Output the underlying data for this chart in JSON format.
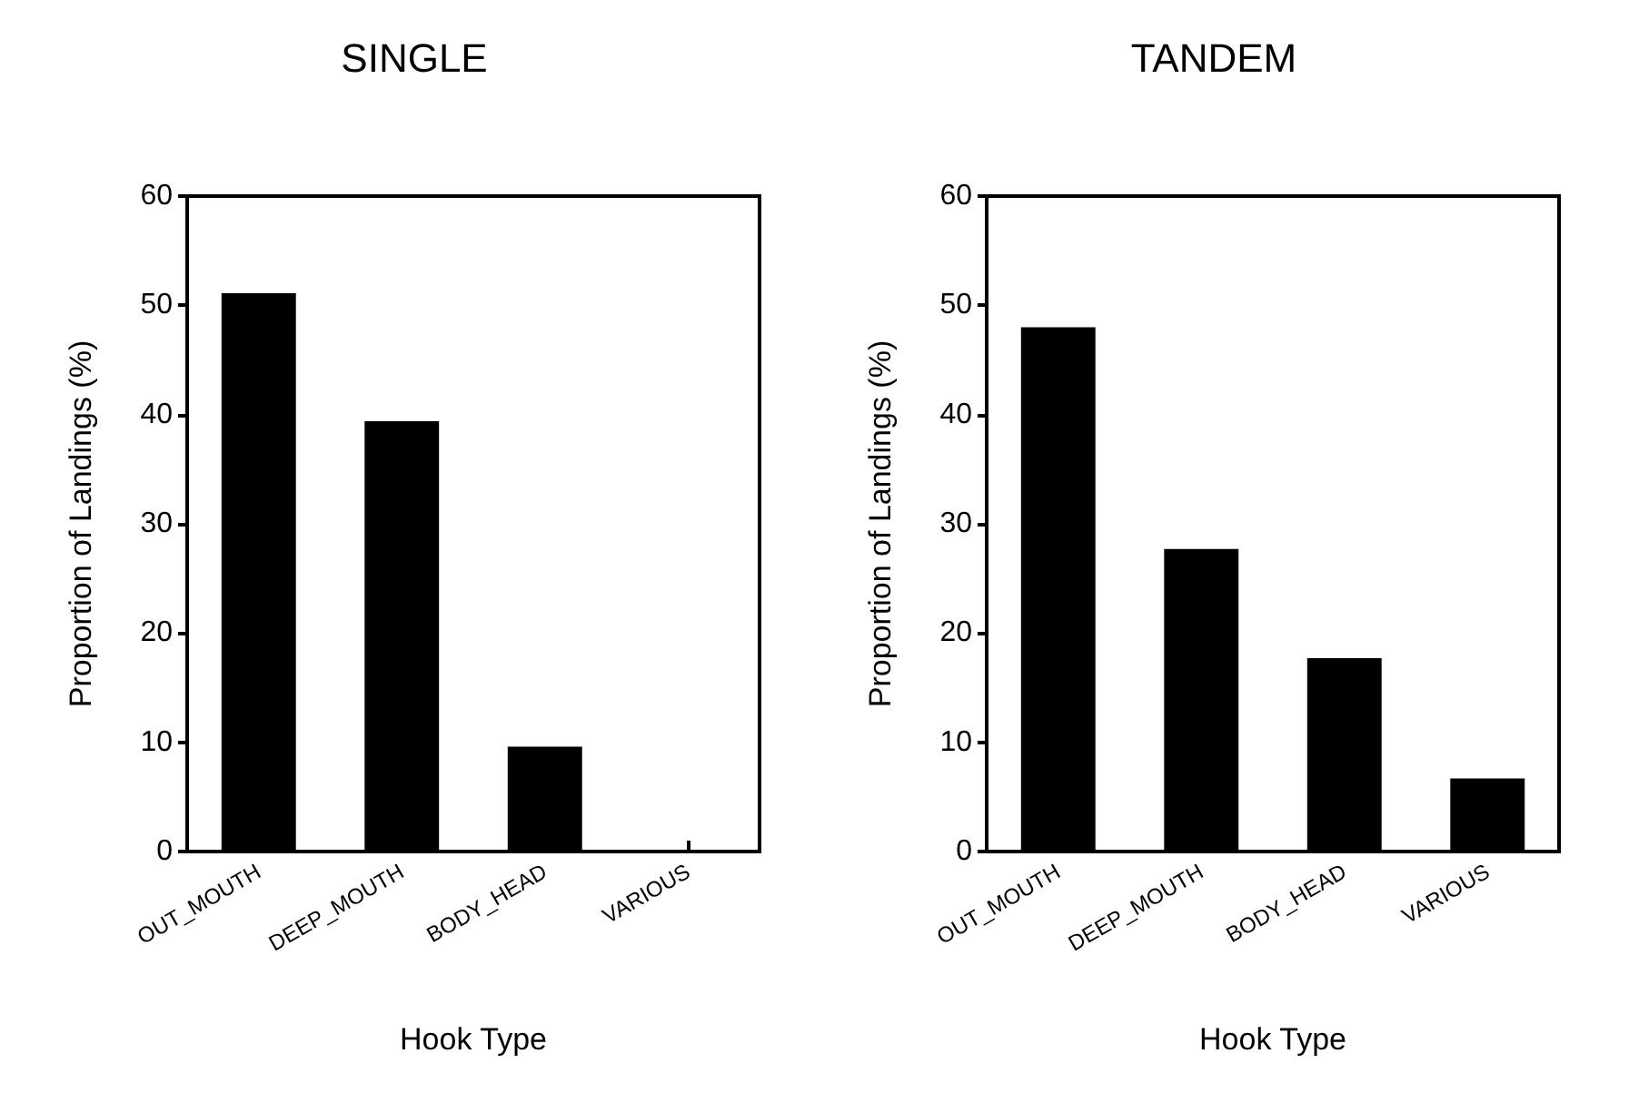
{
  "chart_data": [
    {
      "type": "bar",
      "title": "SINGLE",
      "xlabel": "Hook Type",
      "ylabel": "Proportion of Landings (%)",
      "categories": [
        "OUT_MOUTH",
        "DEEP_MOUTH",
        "BODY_HEAD",
        "VARIOUS"
      ],
      "values": [
        51.1,
        39.4,
        9.6,
        0
      ],
      "color": "#000000",
      "ylim": [
        0,
        60
      ],
      "yticks": [
        0,
        10,
        20,
        30,
        40,
        50,
        60
      ],
      "grid": false
    },
    {
      "type": "bar",
      "title": "TANDEM",
      "xlabel": "Hook Type",
      "ylabel": "Proportion of Landings (%)",
      "categories": [
        "OUT_MOUTH",
        "DEEP_MOUTH",
        "BODY_HEAD",
        "VARIOUS"
      ],
      "values": [
        48.0,
        27.7,
        17.7,
        6.7
      ],
      "color": "#000000",
      "ylim": [
        0,
        60
      ],
      "yticks": [
        0,
        10,
        20,
        30,
        40,
        50,
        60
      ],
      "grid": false
    }
  ]
}
